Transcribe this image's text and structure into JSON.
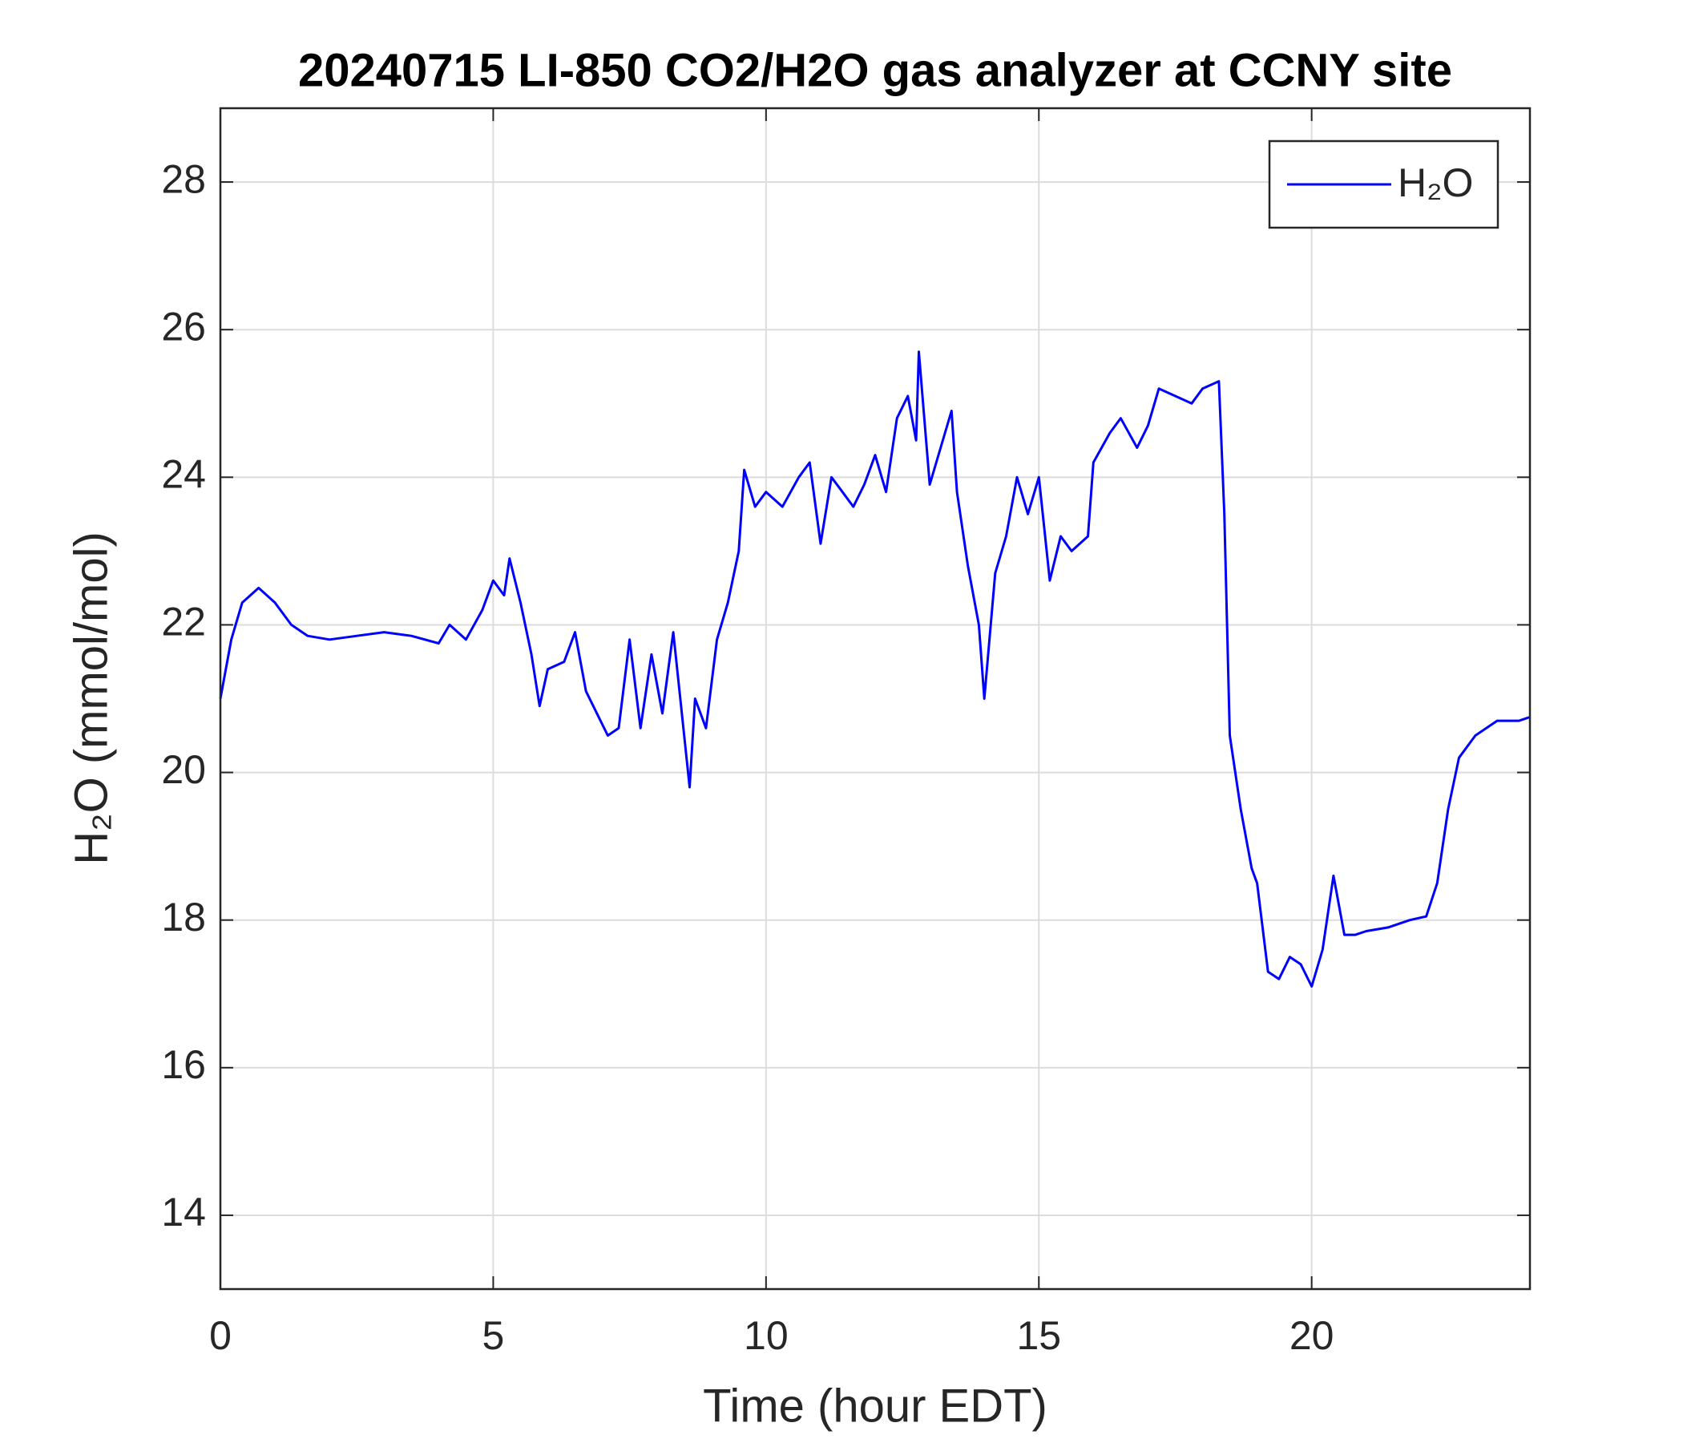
{
  "chart_data": {
    "type": "line",
    "title": "20240715 LI-850 CO2/H2O gas analyzer at CCNY site",
    "xlabel": "Time (hour EDT)",
    "ylabel": "H₂O (mmol/mol)",
    "x": [
      0,
      0.2,
      0.4,
      0.7,
      1.0,
      1.3,
      1.6,
      2.0,
      2.5,
      3.0,
      3.5,
      4.0,
      4.2,
      4.5,
      4.8,
      5.0,
      5.2,
      5.3,
      5.5,
      5.7,
      5.85,
      6.0,
      6.3,
      6.5,
      6.7,
      6.9,
      7.1,
      7.3,
      7.5,
      7.7,
      7.9,
      8.1,
      8.3,
      8.5,
      8.6,
      8.7,
      8.9,
      9.1,
      9.3,
      9.5,
      9.6,
      9.8,
      10.0,
      10.3,
      10.6,
      10.8,
      11.0,
      11.2,
      11.4,
      11.6,
      11.8,
      12.0,
      12.2,
      12.4,
      12.6,
      12.75,
      12.8,
      13.0,
      13.2,
      13.4,
      13.5,
      13.7,
      13.9,
      14.0,
      14.2,
      14.4,
      14.6,
      14.8,
      15.0,
      15.2,
      15.4,
      15.6,
      15.9,
      16.0,
      16.3,
      16.5,
      16.8,
      17.0,
      17.2,
      17.5,
      17.8,
      18.0,
      18.3,
      18.4,
      18.5,
      18.7,
      18.9,
      19.0,
      19.2,
      19.4,
      19.6,
      19.8,
      20.0,
      20.2,
      20.4,
      20.6,
      20.8,
      21.0,
      21.4,
      21.8,
      22.1,
      22.3,
      22.5,
      22.7,
      23.0,
      23.4,
      23.8,
      24.0
    ],
    "series": [
      {
        "name": "H₂O",
        "color": "#0000ff",
        "values": [
          21.0,
          21.8,
          22.3,
          22.5,
          22.3,
          22.0,
          21.85,
          21.8,
          21.85,
          21.9,
          21.85,
          21.75,
          22.0,
          21.8,
          22.2,
          22.6,
          22.4,
          22.9,
          22.3,
          21.6,
          20.9,
          21.4,
          21.5,
          21.9,
          21.1,
          20.8,
          20.5,
          20.6,
          21.8,
          20.6,
          21.6,
          20.8,
          21.9,
          20.5,
          19.8,
          21.0,
          20.6,
          21.8,
          22.3,
          23.0,
          24.1,
          23.6,
          23.8,
          23.6,
          24.0,
          24.2,
          23.1,
          24.0,
          23.8,
          23.6,
          23.9,
          24.3,
          23.8,
          24.8,
          25.1,
          24.5,
          25.7,
          23.9,
          24.4,
          24.9,
          23.8,
          22.8,
          22.0,
          21.0,
          22.7,
          23.2,
          24.0,
          23.5,
          24.0,
          22.6,
          23.2,
          23.0,
          23.2,
          24.2,
          24.6,
          24.8,
          24.4,
          24.7,
          25.2,
          25.1,
          25.0,
          25.2,
          25.3,
          23.5,
          20.5,
          19.5,
          18.7,
          18.5,
          17.3,
          17.2,
          17.5,
          17.4,
          17.1,
          17.6,
          18.6,
          17.8,
          17.8,
          17.85,
          17.9,
          18.0,
          18.05,
          18.5,
          19.5,
          20.2,
          20.5,
          20.7,
          20.7,
          20.75
        ]
      }
    ],
    "xlim": [
      0,
      24
    ],
    "xticks": [
      0,
      5,
      10,
      15,
      20
    ],
    "ylim": [
      13,
      29
    ],
    "yticks": [
      14,
      16,
      18,
      20,
      22,
      24,
      26,
      28
    ],
    "grid": true,
    "legend": "northeast"
  }
}
